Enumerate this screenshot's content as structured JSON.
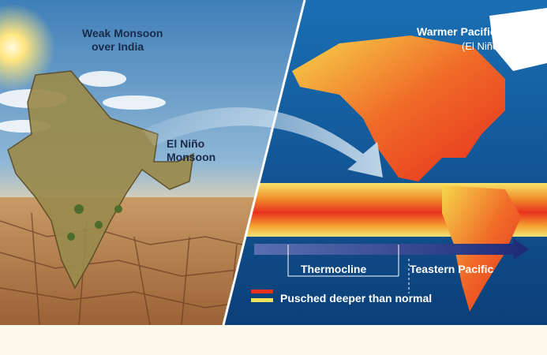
{
  "left_panel": {
    "title_lines": [
      "Weak Monsoon",
      "over India"
    ],
    "label_lines": [
      "El Niño",
      "Monsoon"
    ]
  },
  "right_panel": {
    "title": "Warmer Pacific Wate",
    "subtitle": "(El Niño)",
    "thermocline": "Thermocline",
    "eastern_label": "Teastern Pacific",
    "legend": "Pusched deeper than normal"
  }
}
